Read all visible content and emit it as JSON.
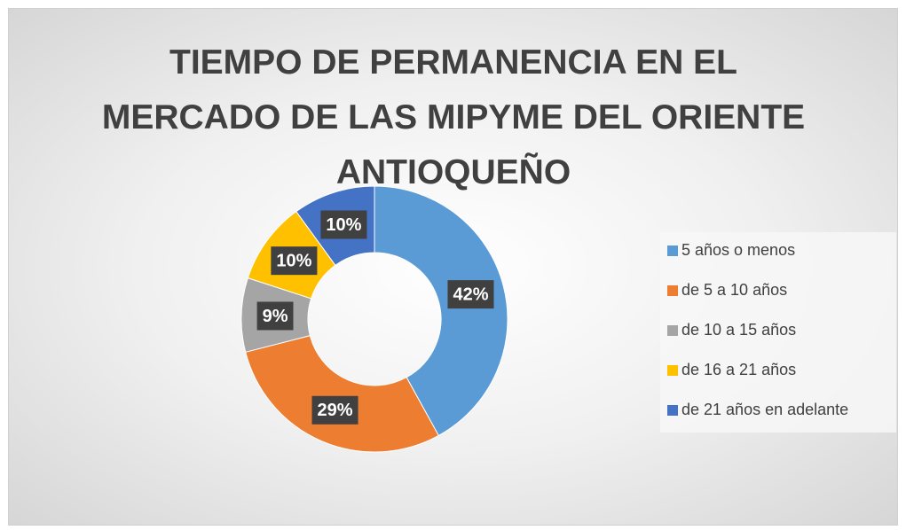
{
  "chart_data": {
    "type": "donut",
    "title": "TIEMPO DE PERMANENCIA EN EL MERCADO DE LAS MIPYME DEL ORIENTE ANTIOQUEÑO",
    "categories": [
      "5 años o menos",
      "de 5 a 10 años",
      "de 10 a 15 años",
      "de 16 a 21 años",
      "de 21 años en adelante"
    ],
    "values": [
      42,
      29,
      9,
      10,
      10
    ],
    "value_labels": [
      "42%",
      "29%",
      "9%",
      "10%",
      "10%"
    ],
    "colors": [
      "#5b9bd5",
      "#ed7d31",
      "#a5a5a5",
      "#ffc000",
      "#4472c4"
    ],
    "legend": "right"
  }
}
